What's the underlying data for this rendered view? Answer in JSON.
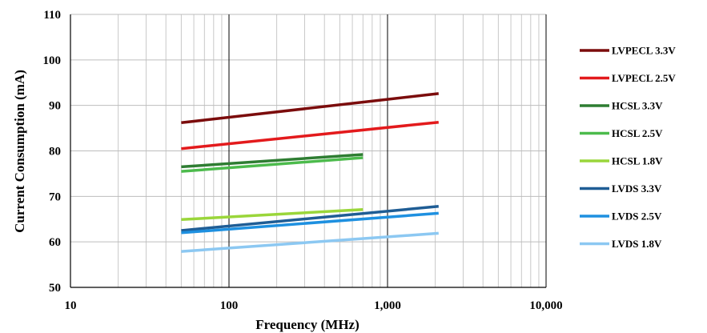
{
  "chart_data": {
    "type": "line",
    "xlabel": "Frequency (MHz)",
    "ylabel": "Current Consumption (mA)",
    "x_scale": "log",
    "xlim": [
      10,
      10000
    ],
    "ylim": [
      50,
      110
    ],
    "x_ticks": [
      {
        "value": 10,
        "label": "10"
      },
      {
        "value": 100,
        "label": "100"
      },
      {
        "value": 1000,
        "label": "1,000"
      },
      {
        "value": 10000,
        "label": "10,000"
      }
    ],
    "y_ticks": [
      50,
      60,
      70,
      80,
      90,
      100,
      110
    ],
    "grid": true,
    "legend_position": "right",
    "series": [
      {
        "name": "LVPECL 3.3V",
        "color": "#7b0c0c",
        "x": [
          50,
          2100
        ],
        "y": [
          86.2,
          92.6
        ]
      },
      {
        "name": "LVPECL 2.5V",
        "color": "#e31a1c",
        "x": [
          50,
          2100
        ],
        "y": [
          80.5,
          86.3
        ]
      },
      {
        "name": "HCSL 3.3V",
        "color": "#2e7d32",
        "x": [
          50,
          700
        ],
        "y": [
          76.5,
          79.2
        ]
      },
      {
        "name": "HCSL 2.5V",
        "color": "#4cbb4c",
        "x": [
          50,
          700
        ],
        "y": [
          75.5,
          78.5
        ]
      },
      {
        "name": "HCSL 1.8V",
        "color": "#9ad63a",
        "x": [
          50,
          700
        ],
        "y": [
          64.9,
          67.1
        ]
      },
      {
        "name": "LVDS 3.3V",
        "color": "#1f5d95",
        "x": [
          50,
          2100
        ],
        "y": [
          62.5,
          67.8
        ]
      },
      {
        "name": "LVDS 2.5V",
        "color": "#1e90e0",
        "x": [
          50,
          2100
        ],
        "y": [
          62.0,
          66.3
        ]
      },
      {
        "name": "LVDS 1.8V",
        "color": "#8cc8f2",
        "x": [
          50,
          2100
        ],
        "y": [
          57.9,
          61.9
        ]
      }
    ]
  }
}
